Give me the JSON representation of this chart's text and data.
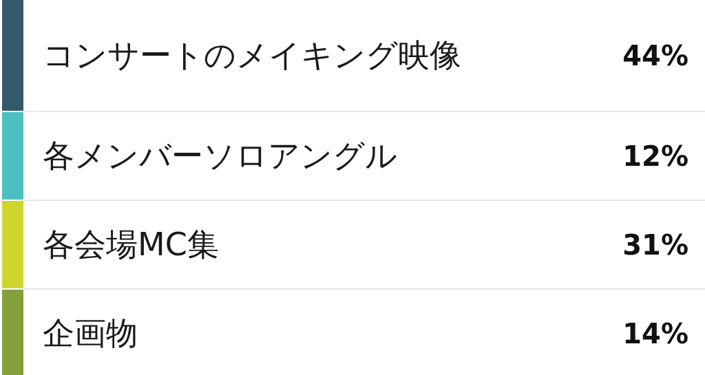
{
  "chart_data": {
    "type": "other",
    "categories": [
      "コンサートのメイキング映像",
      "各メンバーソロアングル",
      "各会場MC集",
      "企画物"
    ],
    "values": [
      44,
      12,
      31,
      14
    ],
    "value_labels": [
      "44%",
      "12%",
      "31%",
      "14%"
    ],
    "colors": [
      "#335a6b",
      "#4bbfc2",
      "#cdd52e",
      "#83a03a"
    ]
  }
}
